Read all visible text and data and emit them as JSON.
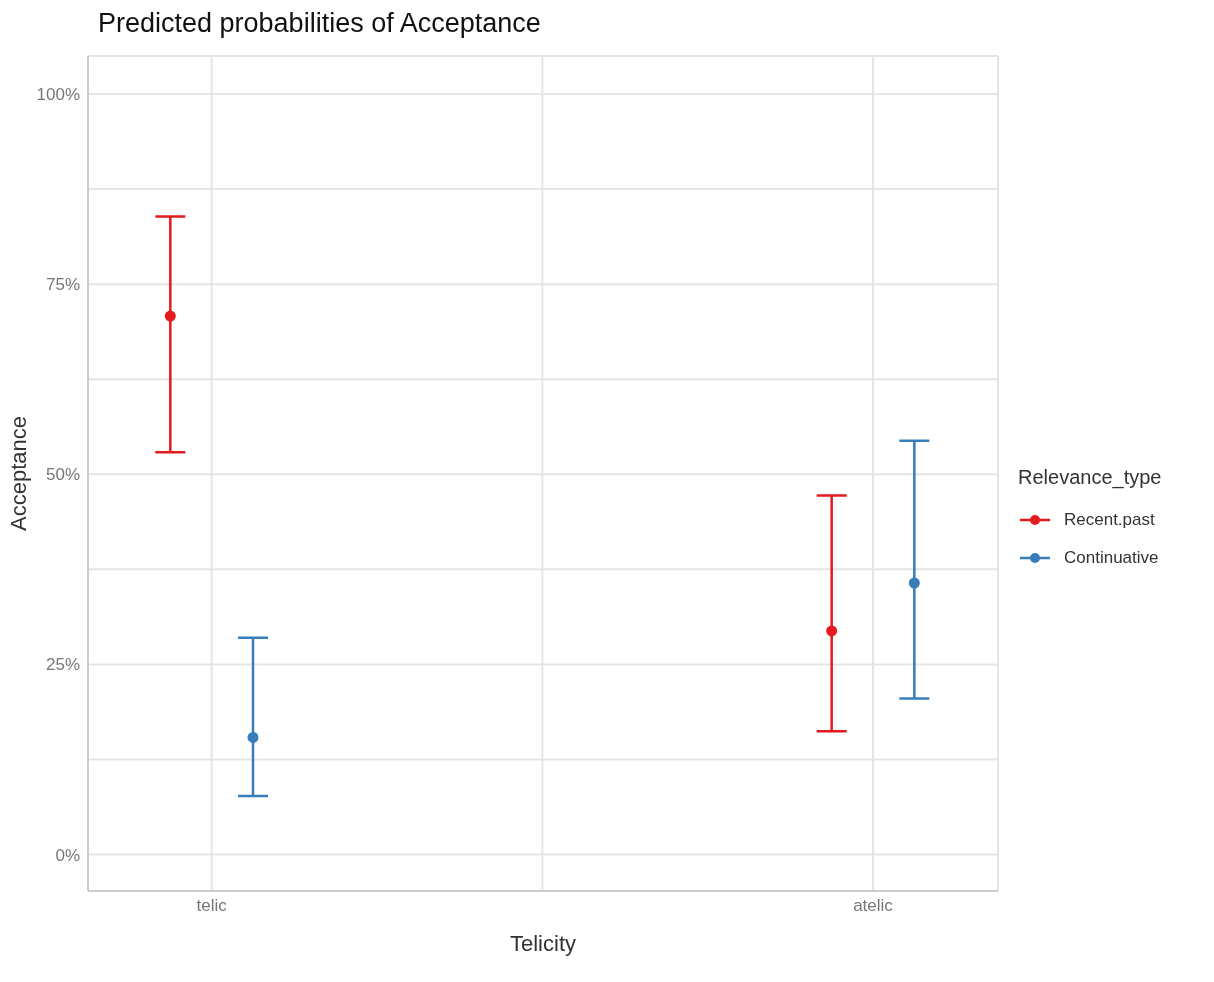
{
  "chart_data": {
    "type": "scatter",
    "title": "Predicted probabilities of Acceptance",
    "xlabel": "Telicity",
    "ylabel": "Acceptance",
    "legend_title": "Relevance_type",
    "categories": [
      "telic",
      "atelic"
    ],
    "series": [
      {
        "name": "Recent.past",
        "color": "#e41a1c",
        "values": [
          70.8,
          29.4
        ],
        "errors": [
          [
            52.9,
            83.9
          ],
          [
            16.2,
            47.2
          ]
        ]
      },
      {
        "name": "Continuative",
        "color": "#377eb8",
        "values": [
          15.4,
          35.7
        ],
        "errors": [
          [
            7.7,
            28.5
          ],
          [
            20.5,
            54.4
          ]
        ]
      }
    ],
    "ylim": [
      -4.8,
      105
    ],
    "yticks": [
      {
        "value": 0,
        "label": "0%"
      },
      {
        "value": 12.5,
        "label": null
      },
      {
        "value": 25,
        "label": "25%"
      },
      {
        "value": 37.5,
        "label": null
      },
      {
        "value": 50,
        "label": "50%"
      },
      {
        "value": 62.5,
        "label": null
      },
      {
        "value": 75,
        "label": "75%"
      },
      {
        "value": 87.5,
        "label": null
      },
      {
        "value": 100,
        "label": "100%"
      }
    ],
    "grid": true,
    "legend": "right",
    "marker": "circle"
  }
}
